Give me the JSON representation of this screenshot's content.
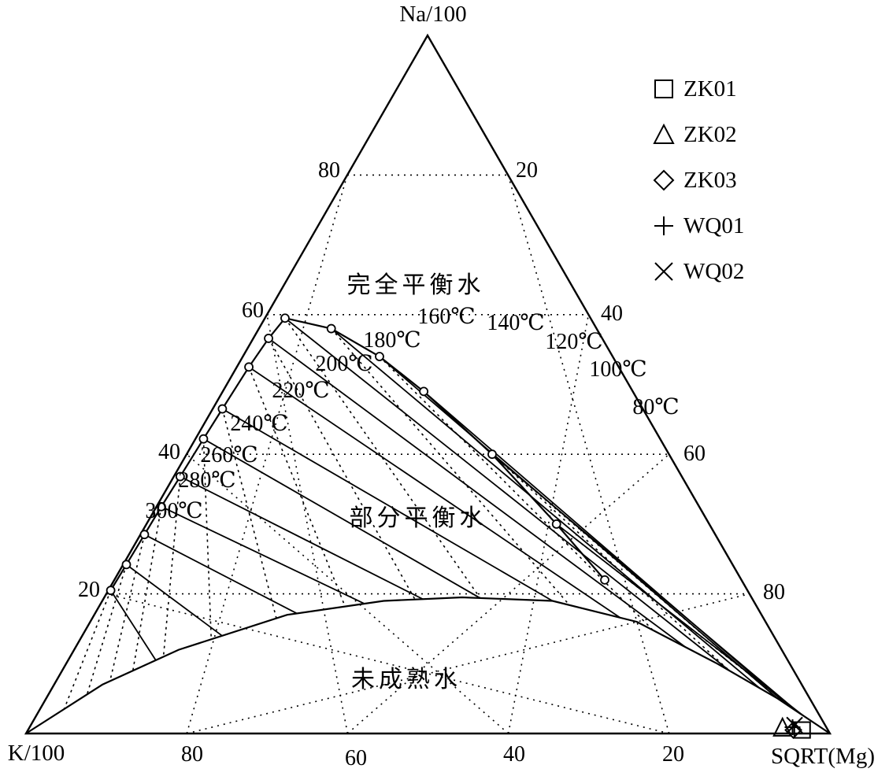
{
  "chart_data": {
    "type": "scatter",
    "subtype": "ternary",
    "apex_labels": {
      "top": "Na/100",
      "left": "K/100",
      "right": "SQRT(Mg)"
    },
    "axis_ticks": {
      "left_edge": [
        "80",
        "60",
        "40",
        "20"
      ],
      "right_edge": [
        "20",
        "40",
        "60",
        "80"
      ],
      "bottom_edge": [
        "80",
        "60",
        "40",
        "20"
      ]
    },
    "region_labels": [
      "完全平衡水",
      "部分平衡水",
      "未成熟水"
    ],
    "temperature_labels": [
      "80℃",
      "100℃",
      "120℃",
      "140℃",
      "160℃",
      "180℃",
      "200℃",
      "220℃",
      "240℃",
      "260℃",
      "280℃",
      "300℃"
    ],
    "full_equilibrium_curve": [
      {
        "na": 20.5,
        "k": 79.2,
        "mg": 0.3
      },
      {
        "na": 24.2,
        "k": 75.4,
        "mg": 0.4
      },
      {
        "na": 28.5,
        "k": 71.0,
        "mg": 0.5
      },
      {
        "na": 32.5,
        "k": 66.9,
        "mg": 0.6
      },
      {
        "na": 36.8,
        "k": 62.4,
        "mg": 0.8
      },
      {
        "na": 42.2,
        "k": 56.8,
        "mg": 1.0
      },
      {
        "na": 46.5,
        "k": 52.3,
        "mg": 1.2
      },
      {
        "na": 52.5,
        "k": 46.0,
        "mg": 1.5
      },
      {
        "na": 56.6,
        "k": 41.5,
        "mg": 1.9
      },
      {
        "na": 59.5,
        "k": 38.0,
        "mg": 2.5
      },
      {
        "na": 58.0,
        "k": 33.0,
        "mg": 9.0
      },
      {
        "na": 54.0,
        "k": 29.0,
        "mg": 17.0
      },
      {
        "na": 49.0,
        "k": 26.0,
        "mg": 25.0
      },
      {
        "na": 40.0,
        "k": 22.0,
        "mg": 38.0
      },
      {
        "na": 30.0,
        "k": 19.0,
        "mg": 51.0
      },
      {
        "na": 22.0,
        "k": 17.0,
        "mg": 61.0
      }
    ],
    "immature_boundary_curve": [
      {
        "na": 0.0,
        "k": 100.0,
        "mg": 0.0
      },
      {
        "na": 7.0,
        "k": 87.0,
        "mg": 6.0
      },
      {
        "na": 12.0,
        "k": 75.0,
        "mg": 13.0
      },
      {
        "na": 17.0,
        "k": 59.0,
        "mg": 24.0
      },
      {
        "na": 19.0,
        "k": 46.0,
        "mg": 35.0
      },
      {
        "na": 19.5,
        "k": 36.0,
        "mg": 44.5
      },
      {
        "na": 19.0,
        "k": 25.0,
        "mg": 56.0
      },
      {
        "na": 16.0,
        "k": 16.0,
        "mg": 68.0
      },
      {
        "na": 10.0,
        "k": 9.0,
        "mg": 81.0
      },
      {
        "na": 5.0,
        "k": 4.0,
        "mg": 91.0
      },
      {
        "na": 0.0,
        "k": 0.0,
        "mg": 100.0
      }
    ],
    "samples": [
      {
        "name": "ZK01",
        "symbol": "square",
        "na": 0.5,
        "k": 3.2,
        "mg": 96.3
      },
      {
        "name": "ZK02",
        "symbol": "triangle",
        "na": 0.8,
        "k": 5.5,
        "mg": 93.7
      },
      {
        "name": "ZK03",
        "symbol": "diamond",
        "na": 0.5,
        "k": 4.3,
        "mg": 95.2
      },
      {
        "name": "WQ01",
        "symbol": "plus",
        "na": 0.9,
        "k": 4.2,
        "mg": 94.9
      },
      {
        "name": "WQ02",
        "symbol": "cross",
        "na": 1.2,
        "k": 3.8,
        "mg": 95.0
      }
    ],
    "grid": true,
    "legend_position": "top-right"
  }
}
